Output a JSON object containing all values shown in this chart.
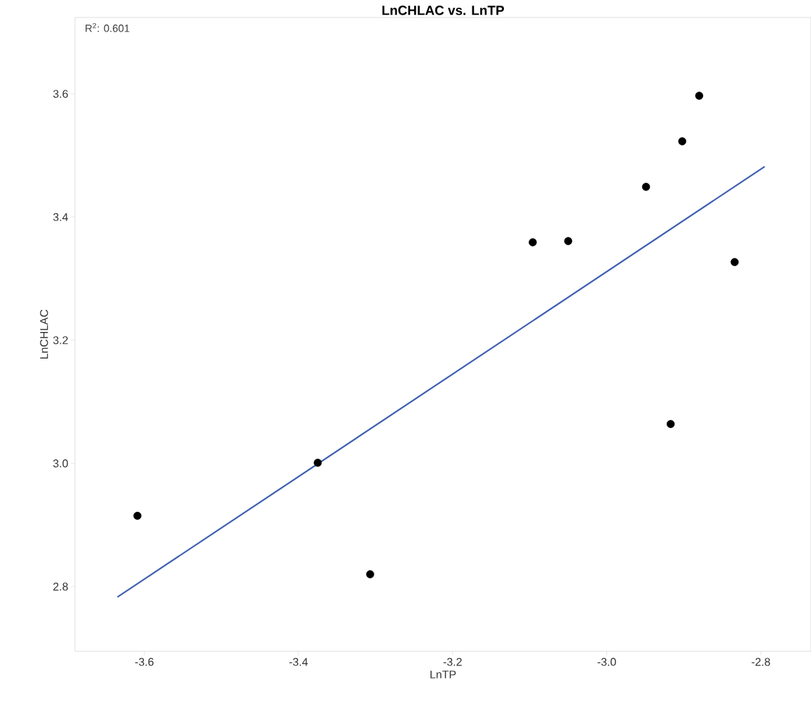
{
  "chart_data": {
    "type": "scatter",
    "title": "LnCHLAC vs. LnTP",
    "xlabel": "LnTP",
    "ylabel": "LnCHLAC",
    "xlim": [
      -3.69,
      -2.735
    ],
    "ylim": [
      2.695,
      3.724
    ],
    "xticks": [
      -3.6,
      -3.4,
      -3.2,
      {
        "value": -3.0,
        "label": "-3.0"
      },
      -2.8
    ],
    "yticks": [
      2.8,
      {
        "value": 3.0,
        "label": "3.0"
      },
      3.2,
      3.4,
      3.6
    ],
    "annotations": [
      "R$^{2}$: 0.601"
    ],
    "series": [
      {
        "type": "scatter",
        "marker": "circle",
        "color": "#000000",
        "x": [
          -3.609,
          -3.375,
          -3.307,
          -3.096,
          -3.05,
          -2.949,
          -2.917,
          -2.902,
          -2.88,
          -2.834
        ],
        "values": [
          2.915,
          3.001,
          2.82,
          3.359,
          3.361,
          3.449,
          3.064,
          3.523,
          3.597,
          3.327
        ]
      },
      {
        "type": "line",
        "marker": "none",
        "line_style": "solid",
        "color": "#3f5fb0",
        "x": [
          -3.635,
          -2.795
        ],
        "values": [
          2.783,
          3.482
        ]
      }
    ]
  }
}
